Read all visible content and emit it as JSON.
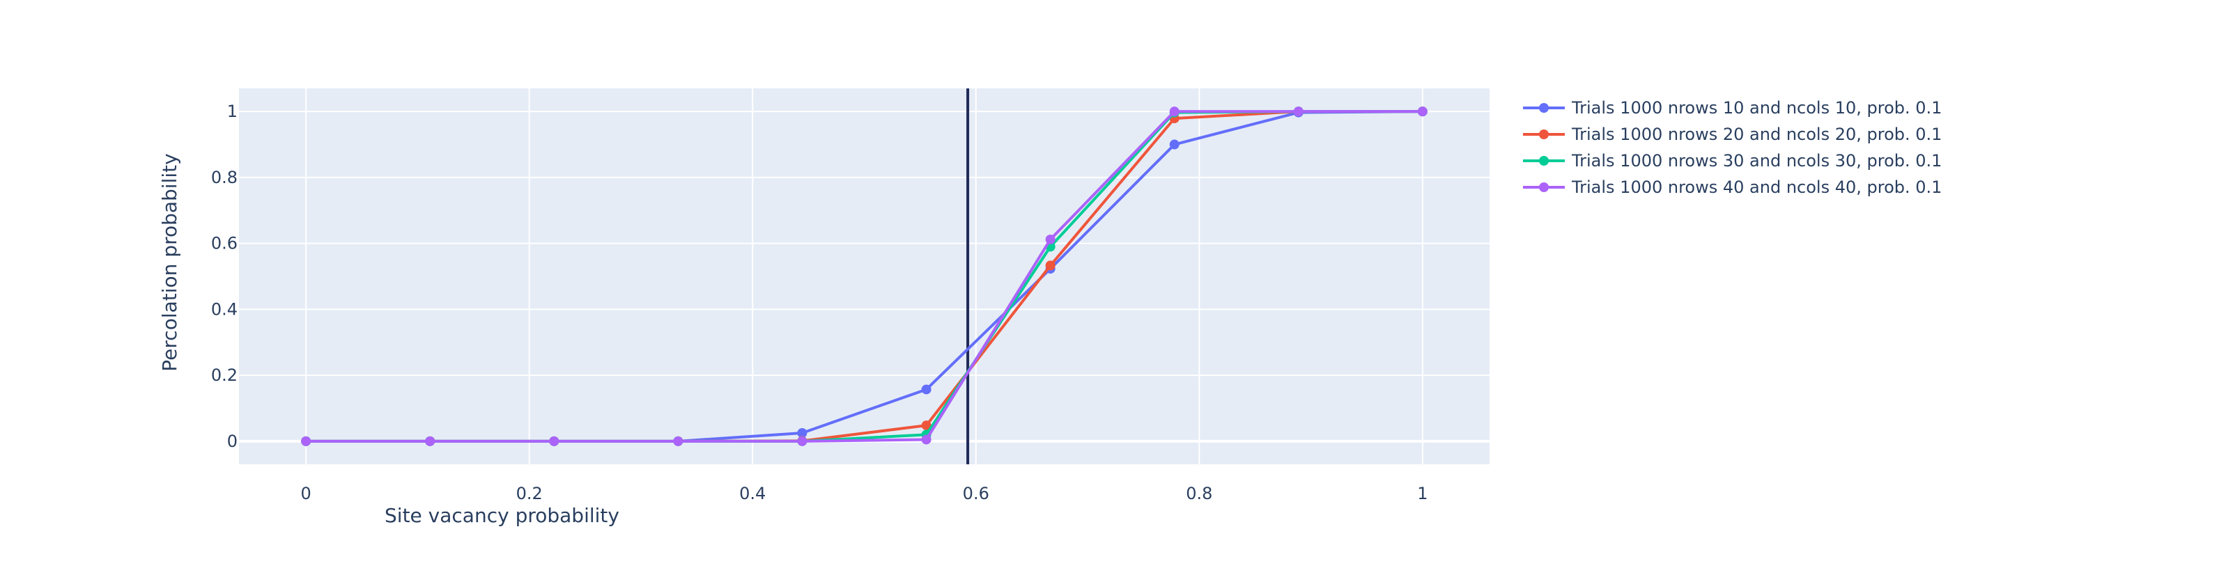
{
  "chart_data": {
    "type": "line",
    "title": "",
    "xlabel": "Site vacancy probability",
    "ylabel": "Percolation probability",
    "xlim": [
      -0.06,
      1.06
    ],
    "ylim": [
      -0.07,
      1.07
    ],
    "x_ticks": [
      0,
      0.2,
      0.4,
      0.6,
      0.8,
      1
    ],
    "x_tick_labels": [
      "0",
      "0.2",
      "0.4",
      "0.6",
      "0.8",
      "1"
    ],
    "y_ticks": [
      0,
      0.2,
      0.4,
      0.6,
      0.8,
      1
    ],
    "y_tick_labels": [
      "0",
      "0.2",
      "0.4",
      "0.6",
      "0.8",
      "1"
    ],
    "grid": true,
    "legend_position": "top-right, outside plot",
    "plot_background": "#e5ecf6",
    "vertical_line": {
      "x": 0.5927,
      "color": "#1f2a5a"
    },
    "x": [
      0,
      0.1111,
      0.2222,
      0.3333,
      0.4444,
      0.5556,
      0.6667,
      0.7778,
      0.8889,
      1
    ],
    "series": [
      {
        "name": "Trials 1000 nrows 10 and ncols 10, prob. 0.1",
        "color": "#636efa",
        "values": [
          0,
          0,
          0,
          0,
          0.025,
          0.157,
          0.523,
          0.9,
          0.997,
          1
        ]
      },
      {
        "name": "Trials 1000 nrows 20 and ncols 20, prob. 0.1",
        "color": "#ef553b",
        "values": [
          0,
          0,
          0,
          0,
          0.001,
          0.048,
          0.533,
          0.979,
          1,
          1
        ]
      },
      {
        "name": "Trials 1000 nrows 30 and ncols 30, prob. 0.1",
        "color": "#00cc96",
        "values": [
          0,
          0,
          0,
          0,
          0,
          0.02,
          0.59,
          0.997,
          1,
          1
        ]
      },
      {
        "name": "Trials 1000 nrows 40 and ncols 40, prob. 0.1",
        "color": "#ab63fa",
        "values": [
          0,
          0,
          0,
          0,
          0,
          0.005,
          0.612,
          1,
          1,
          1
        ]
      }
    ]
  }
}
